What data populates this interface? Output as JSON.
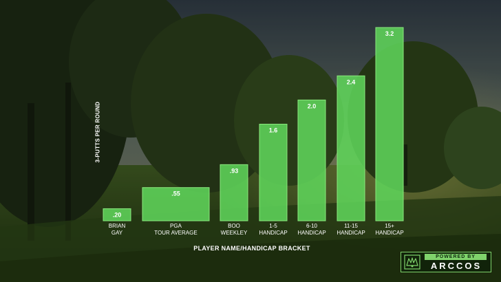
{
  "chart_data": {
    "type": "bar",
    "categories": [
      [
        "BRIAN",
        "GAY"
      ],
      [
        "PGA",
        "TOUR AVERAGE"
      ],
      [
        "BOO",
        "WEEKLEY"
      ],
      [
        "1-5",
        "HANDICAP"
      ],
      [
        "6-10",
        "HANDICAP"
      ],
      [
        "11-15",
        "HANDICAP"
      ],
      [
        "15+",
        "HANDICAP"
      ]
    ],
    "values": [
      0.2,
      0.55,
      0.93,
      1.6,
      2.0,
      2.4,
      3.2
    ],
    "data_labels": [
      ".20",
      ".55",
      ".93",
      "1.6",
      "2.0",
      "2.4",
      "3.2"
    ],
    "xlabel": "PLAYER NAME/HANDICAP BRACKET",
    "ylabel": "3-PUTTS PER ROUND",
    "ylim": [
      0,
      3.2
    ],
    "grid": false,
    "bar_color": "#5fd45a",
    "bar_edge_color": "#8ae87d"
  },
  "branding": {
    "top_text": "POWERED BY",
    "name": "ARCCOS",
    "accent": "#7fd36b"
  }
}
